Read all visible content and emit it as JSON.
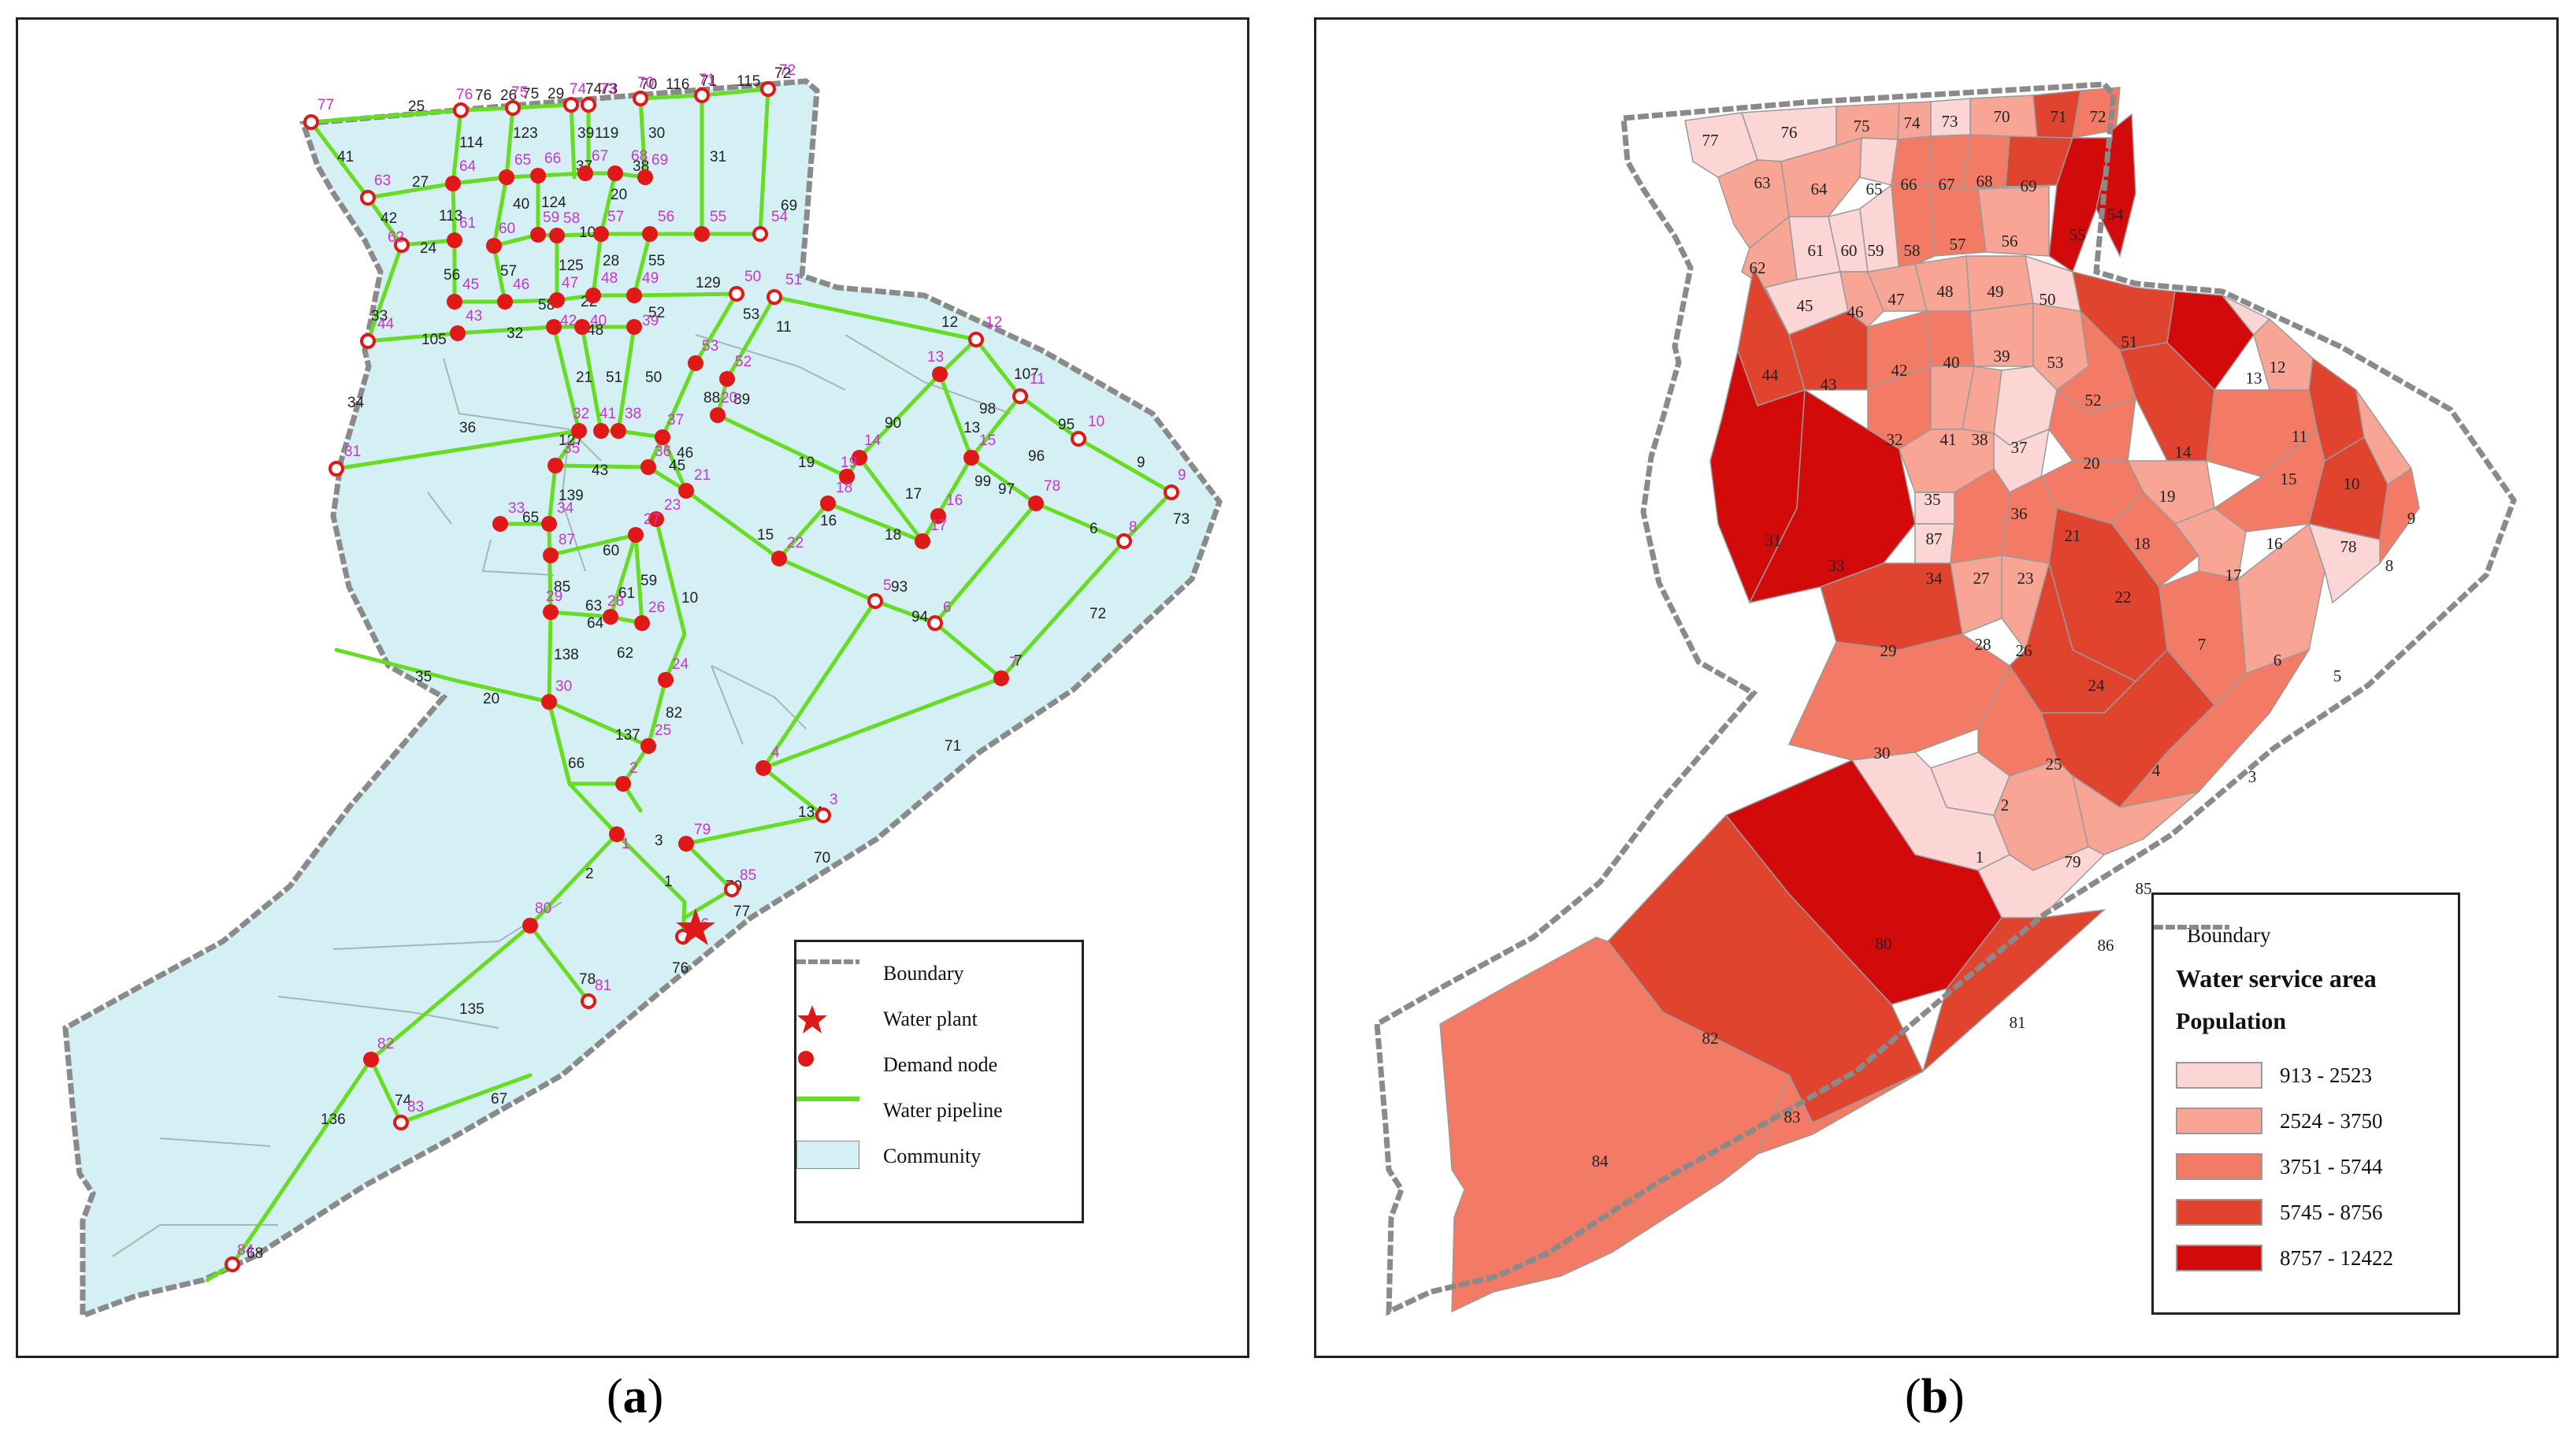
{
  "captions": {
    "a": "a",
    "b": "b"
  },
  "legend_a": {
    "boundary": "Boundary",
    "water_plant": "Water plant",
    "demand_node": "Demand node",
    "water_pipeline": "Water pipeline",
    "community": "Community"
  },
  "legend_b": {
    "boundary": "Boundary",
    "title": "Water service area",
    "subtitle": "Population",
    "classes": [
      {
        "label": "913 - 2523",
        "color": "#fcd5d5"
      },
      {
        "label": "2524 - 3750",
        "color": "#f9a596"
      },
      {
        "label": "3751 - 5744",
        "color": "#f37a64"
      },
      {
        "label": "5745 - 8756",
        "color": "#e0442f"
      },
      {
        "label": "8757 - 12422",
        "color": "#d20a0a"
      }
    ]
  },
  "colors": {
    "community": "#d4f0f4",
    "pipeline": "#66dd22",
    "node": "#e01818",
    "node_label": "#cc33cc",
    "boundary": "#8a8a8a"
  },
  "nodes": [
    "1",
    "2",
    "3",
    "4",
    "5",
    "6",
    "7",
    "8",
    "9",
    "10",
    "11",
    "12",
    "13",
    "14",
    "15",
    "16",
    "17",
    "18",
    "19",
    "20",
    "21",
    "22",
    "23",
    "24",
    "25",
    "26",
    "27",
    "28",
    "29",
    "30",
    "31",
    "32",
    "33",
    "34",
    "35",
    "36",
    "37",
    "38",
    "39",
    "40",
    "41",
    "42",
    "43",
    "44",
    "45",
    "46",
    "47",
    "48",
    "49",
    "50",
    "51",
    "52",
    "53",
    "54",
    "55",
    "56",
    "57",
    "58",
    "59",
    "60",
    "61",
    "62",
    "63",
    "64",
    "65",
    "66",
    "67",
    "68",
    "69",
    "70",
    "71",
    "72",
    "73",
    "74",
    "75",
    "76",
    "77",
    "78",
    "79",
    "80",
    "81",
    "82",
    "83",
    "84",
    "85",
    "86",
    "87"
  ],
  "pipes": [
    "1",
    "2",
    "3",
    "6",
    "7",
    "9",
    "10",
    "11",
    "12",
    "13",
    "15",
    "16",
    "17",
    "18",
    "19",
    "20",
    "21",
    "22",
    "24",
    "25",
    "26",
    "27",
    "28",
    "29",
    "30",
    "31",
    "32",
    "33",
    "34",
    "35",
    "36",
    "37",
    "38",
    "39",
    "40",
    "41",
    "42",
    "43",
    "45",
    "48",
    "50",
    "51",
    "53",
    "55",
    "56",
    "57",
    "58",
    "59",
    "61",
    "62",
    "63",
    "64",
    "65",
    "66",
    "67",
    "68",
    "69",
    "70",
    "71",
    "72",
    "73",
    "74",
    "76",
    "77",
    "78",
    "79",
    "82",
    "85",
    "88",
    "89",
    "90",
    "93",
    "94",
    "95",
    "96",
    "97",
    "98",
    "99",
    "105",
    "107",
    "109",
    "113",
    "114",
    "115",
    "116",
    "119",
    "120",
    "123",
    "124",
    "125",
    "127",
    "129",
    "132",
    "134",
    "135",
    "136",
    "137",
    "138",
    "139"
  ],
  "service_areas": [
    {
      "id": "77",
      "class": 0
    },
    {
      "id": "76",
      "class": 0
    },
    {
      "id": "75",
      "class": 1
    },
    {
      "id": "74",
      "class": 1
    },
    {
      "id": "73",
      "class": 0
    },
    {
      "id": "70",
      "class": 1
    },
    {
      "id": "71",
      "class": 3
    },
    {
      "id": "72",
      "class": 2
    },
    {
      "id": "63",
      "class": 1
    },
    {
      "id": "64",
      "class": 1
    },
    {
      "id": "65",
      "class": 0
    },
    {
      "id": "66",
      "class": 2
    },
    {
      "id": "67",
      "class": 2
    },
    {
      "id": "68",
      "class": 2
    },
    {
      "id": "69",
      "class": 3
    },
    {
      "id": "55",
      "class": 4
    },
    {
      "id": "54",
      "class": 4
    },
    {
      "id": "62",
      "class": 1
    },
    {
      "id": "61",
      "class": 0
    },
    {
      "id": "60",
      "class": 0
    },
    {
      "id": "59",
      "class": 0
    },
    {
      "id": "58",
      "class": 2
    },
    {
      "id": "57",
      "class": 2
    },
    {
      "id": "56",
      "class": 1
    },
    {
      "id": "45",
      "class": 0
    },
    {
      "id": "46",
      "class": 1
    },
    {
      "id": "47",
      "class": 1
    },
    {
      "id": "48",
      "class": 1
    },
    {
      "id": "49",
      "class": 1
    },
    {
      "id": "50",
      "class": 0
    },
    {
      "id": "51",
      "class": 3
    },
    {
      "id": "13",
      "class": 4
    },
    {
      "id": "12",
      "class": 0
    },
    {
      "id": "44",
      "class": 3
    },
    {
      "id": "43",
      "class": 3
    },
    {
      "id": "42",
      "class": 2
    },
    {
      "id": "40",
      "class": 2
    },
    {
      "id": "39",
      "class": 1
    },
    {
      "id": "53",
      "class": 1
    },
    {
      "id": "52",
      "class": 2
    },
    {
      "id": "14",
      "class": 3
    },
    {
      "id": "11",
      "class": 1
    },
    {
      "id": "32",
      "class": 2
    },
    {
      "id": "41",
      "class": 1
    },
    {
      "id": "38",
      "class": 1
    },
    {
      "id": "37",
      "class": 0
    },
    {
      "id": "20",
      "class": 2
    },
    {
      "id": "15",
      "class": 2
    },
    {
      "id": "10",
      "class": 3
    },
    {
      "id": "9",
      "class": 1
    },
    {
      "id": "31",
      "class": 4
    },
    {
      "id": "33",
      "class": 4
    },
    {
      "id": "35",
      "class": 1
    },
    {
      "id": "36",
      "class": 0
    },
    {
      "id": "19",
      "class": 1
    },
    {
      "id": "16",
      "class": 2
    },
    {
      "id": "78",
      "class": 3
    },
    {
      "id": "8",
      "class": 2
    },
    {
      "id": "87",
      "class": 0
    },
    {
      "id": "34",
      "class": 0
    },
    {
      "id": "27",
      "class": 2
    },
    {
      "id": "23",
      "class": 2
    },
    {
      "id": "21",
      "class": 2
    },
    {
      "id": "18",
      "class": 2
    },
    {
      "id": "17",
      "class": 1
    },
    {
      "id": "22",
      "class": 3
    },
    {
      "id": "7",
      "class": 2
    },
    {
      "id": "6",
      "class": 1
    },
    {
      "id": "5",
      "class": 0
    },
    {
      "id": "29",
      "class": 3
    },
    {
      "id": "28",
      "class": 1
    },
    {
      "id": "26",
      "class": 1
    },
    {
      "id": "24",
      "class": 3
    },
    {
      "id": "30",
      "class": 2
    },
    {
      "id": "25",
      "class": 2
    },
    {
      "id": "4",
      "class": 3
    },
    {
      "id": "3",
      "class": 2
    },
    {
      "id": "2",
      "class": 0
    },
    {
      "id": "1",
      "class": 0
    },
    {
      "id": "79",
      "class": 1
    },
    {
      "id": "85",
      "class": 1
    },
    {
      "id": "86",
      "class": 0
    },
    {
      "id": "80",
      "class": 4
    },
    {
      "id": "81",
      "class": 3
    },
    {
      "id": "82",
      "class": 3
    },
    {
      "id": "83",
      "class": 2
    },
    {
      "id": "84",
      "class": 2
    }
  ]
}
